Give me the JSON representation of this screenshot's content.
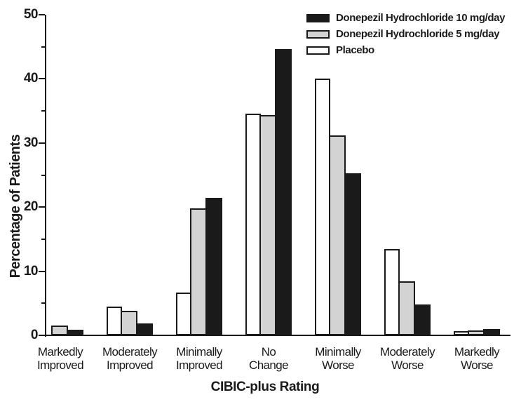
{
  "figure_title": "CIBIC-plus score distribution bar chart",
  "chart_data": {
    "type": "bar",
    "title": "",
    "xlabel": "CIBIC-plus Rating",
    "ylabel": "Percentage of Patients",
    "ylim": [
      0,
      50
    ],
    "y_major_step": 10,
    "y_minor_step": 5,
    "grid": false,
    "legend_position": "top-right",
    "background_color": "#ffffff",
    "ink_color": "#1a1a1a",
    "categories": [
      "Markedly Improved",
      "Moderately Improved",
      "Minimally Improved",
      "No Change",
      "Minimally Worse",
      "Moderately Worse",
      "Markedly Worse"
    ],
    "series": [
      {
        "name": "Donepezil Hydrochloride 10 mg/day",
        "key": "donepezil-10mg",
        "color": "#1a1a1a",
        "values": [
          0.9,
          1.9,
          21.4,
          44.6,
          25.3,
          4.8,
          1.0
        ]
      },
      {
        "name": "Donepezil Hydrochloride 5 mg/day",
        "key": "donepezil-5mg",
        "color": "#d3d3d3",
        "values": [
          1.5,
          3.8,
          19.8,
          34.3,
          31.2,
          8.4,
          0.8
        ]
      },
      {
        "name": "Placebo",
        "key": "placebo",
        "color": "#ffffff",
        "values": [
          0,
          4.5,
          6.7,
          34.6,
          40.0,
          13.5,
          0.7
        ]
      }
    ],
    "y_tick_labels": [
      "0",
      "10",
      "20",
      "30",
      "40",
      "50"
    ]
  }
}
